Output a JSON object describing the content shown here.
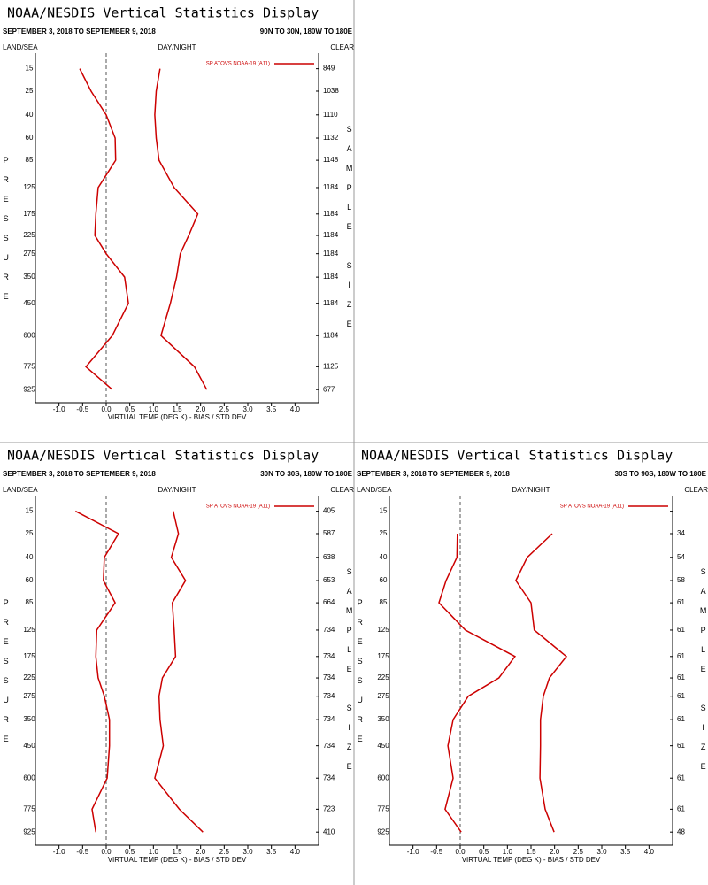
{
  "chart_data": [
    {
      "type": "line",
      "title": "NOAA/NESDIS Vertical Statistics Display",
      "subtitle": "SEPTEMBER 3, 2018 TO SEPTEMBER 9, 2018",
      "region": "90N TO 30N, 180W TO 180E",
      "surface_label": "LAND/SEA",
      "time_label": "DAY/NIGHT",
      "sky_label": "CLEAR",
      "ylabel": "PRESSURE",
      "y2label": "SAMPLE SIZE",
      "xlabel": "VIRTUAL TEMP (DEG K) - BIAS / STD DEV",
      "ylim": [
        10,
        1000
      ],
      "yscale_exponent": 0.286,
      "yticks": [
        15,
        25,
        40,
        60,
        85,
        125,
        175,
        225,
        275,
        350,
        450,
        600,
        775,
        925
      ],
      "xlim": [
        -1.5,
        4.5
      ],
      "xticks": [
        {
          "value": -1,
          "label": "-1.0"
        },
        -0.5,
        {
          "value": 0,
          "label": "0.0"
        },
        0.5,
        {
          "value": 1,
          "label": "1.0"
        },
        1.5,
        {
          "value": 2,
          "label": "2.0"
        },
        2.5,
        {
          "value": 3,
          "label": "3.0"
        },
        3.5,
        {
          "value": 4,
          "label": "4.0"
        }
      ],
      "zero_line": true,
      "sample_size": [
        849,
        1038,
        1110,
        1132,
        1148,
        1184,
        1184,
        1184,
        1184,
        1184,
        1184,
        1184,
        1125,
        677
      ],
      "series": [
        {
          "name": "SP ATOVS NOAA-19 (A11)",
          "color": "#cc0000",
          "bias": [
            -0.56,
            -0.32,
            0.0,
            0.19,
            0.2,
            -0.17,
            -0.22,
            -0.24,
            0.0,
            0.39,
            0.47,
            0.13,
            -0.43,
            0.13
          ],
          "std_dev": [
            1.14,
            1.06,
            1.03,
            1.06,
            1.12,
            1.44,
            1.94,
            1.75,
            1.57,
            1.49,
            1.36,
            1.16,
            1.87,
            2.13
          ]
        }
      ]
    },
    {
      "type": "line",
      "title": "NOAA/NESDIS Vertical Statistics Display",
      "subtitle": "SEPTEMBER 3, 2018 TO SEPTEMBER 9, 2018",
      "region": "30N TO 30S, 180W TO 180E",
      "surface_label": "LAND/SEA",
      "time_label": "DAY/NIGHT",
      "sky_label": "CLEAR",
      "ylabel": "PRESSURE",
      "y2label": "SAMPLE SIZE",
      "xlabel": "VIRTUAL TEMP (DEG K) - BIAS / STD DEV",
      "ylim": [
        10,
        1000
      ],
      "yscale_exponent": 0.286,
      "yticks": [
        15,
        25,
        40,
        60,
        85,
        125,
        175,
        225,
        275,
        350,
        450,
        600,
        775,
        925
      ],
      "xlim": [
        -1.5,
        4.5
      ],
      "xticks": [
        {
          "value": -1,
          "label": "-1.0"
        },
        -0.5,
        {
          "value": 0,
          "label": "0.0"
        },
        0.5,
        {
          "value": 1,
          "label": "1.0"
        },
        1.5,
        {
          "value": 2,
          "label": "2.0"
        },
        2.5,
        {
          "value": 3,
          "label": "3.0"
        },
        3.5,
        {
          "value": 4,
          "label": "4.0"
        }
      ],
      "zero_line": true,
      "sample_size": [
        405,
        587,
        638,
        653,
        664,
        734,
        734,
        734,
        734,
        734,
        734,
        734,
        723,
        410
      ],
      "series": [
        {
          "name": "SP ATOVS NOAA-19 (A11)",
          "color": "#cc0000",
          "bias": [
            -0.65,
            0.26,
            -0.04,
            -0.06,
            0.19,
            -0.2,
            -0.22,
            -0.17,
            -0.04,
            0.07,
            0.07,
            0.02,
            -0.3,
            -0.22
          ],
          "std_dev": [
            1.42,
            1.53,
            1.38,
            1.68,
            1.4,
            1.44,
            1.47,
            1.19,
            1.12,
            1.14,
            1.21,
            1.03,
            1.55,
            2.05
          ]
        }
      ]
    },
    {
      "type": "line",
      "title": "NOAA/NESDIS Vertical Statistics Display",
      "subtitle": "SEPTEMBER 3, 2018 TO SEPTEMBER 9, 2018",
      "region": "30S TO 90S, 180W TO 180E",
      "surface_label": "LAND/SEA",
      "time_label": "DAY/NIGHT",
      "sky_label": "CLEAR",
      "ylabel": "PRESSURE",
      "y2label": "SAMPLE SIZE",
      "xlabel": "VIRTUAL TEMP (DEG K) - BIAS / STD DEV",
      "ylim": [
        10,
        1000
      ],
      "yscale_exponent": 0.286,
      "yticks": [
        15,
        25,
        40,
        60,
        85,
        125,
        175,
        225,
        275,
        350,
        450,
        600,
        775,
        925
      ],
      "xlim": [
        -1.5,
        4.5
      ],
      "xticks": [
        {
          "value": -1,
          "label": "-1.0"
        },
        -0.5,
        {
          "value": 0,
          "label": "0.0"
        },
        0.5,
        {
          "value": 1,
          "label": "1.0"
        },
        1.5,
        {
          "value": 2,
          "label": "2.0"
        },
        2.5,
        {
          "value": 3,
          "label": "3.0"
        },
        3.5,
        {
          "value": 4,
          "label": "4.0"
        }
      ],
      "zero_line": true,
      "sample_size": [
        null,
        34,
        54,
        58,
        61,
        61,
        61,
        61,
        61,
        61,
        61,
        61,
        61,
        48
      ],
      "series": [
        {
          "name": "SP ATOVS NOAA-19 (A11)",
          "color": "#cc0000",
          "bias": [
            null,
            -0.06,
            -0.07,
            -0.3,
            -0.45,
            0.11,
            1.16,
            0.82,
            0.17,
            -0.15,
            -0.26,
            -0.15,
            -0.32,
            0.02
          ],
          "std_dev": [
            null,
            1.95,
            1.42,
            1.18,
            1.5,
            1.57,
            2.25,
            1.89,
            1.76,
            1.7,
            1.7,
            1.69,
            1.8,
            1.99
          ]
        }
      ]
    }
  ]
}
